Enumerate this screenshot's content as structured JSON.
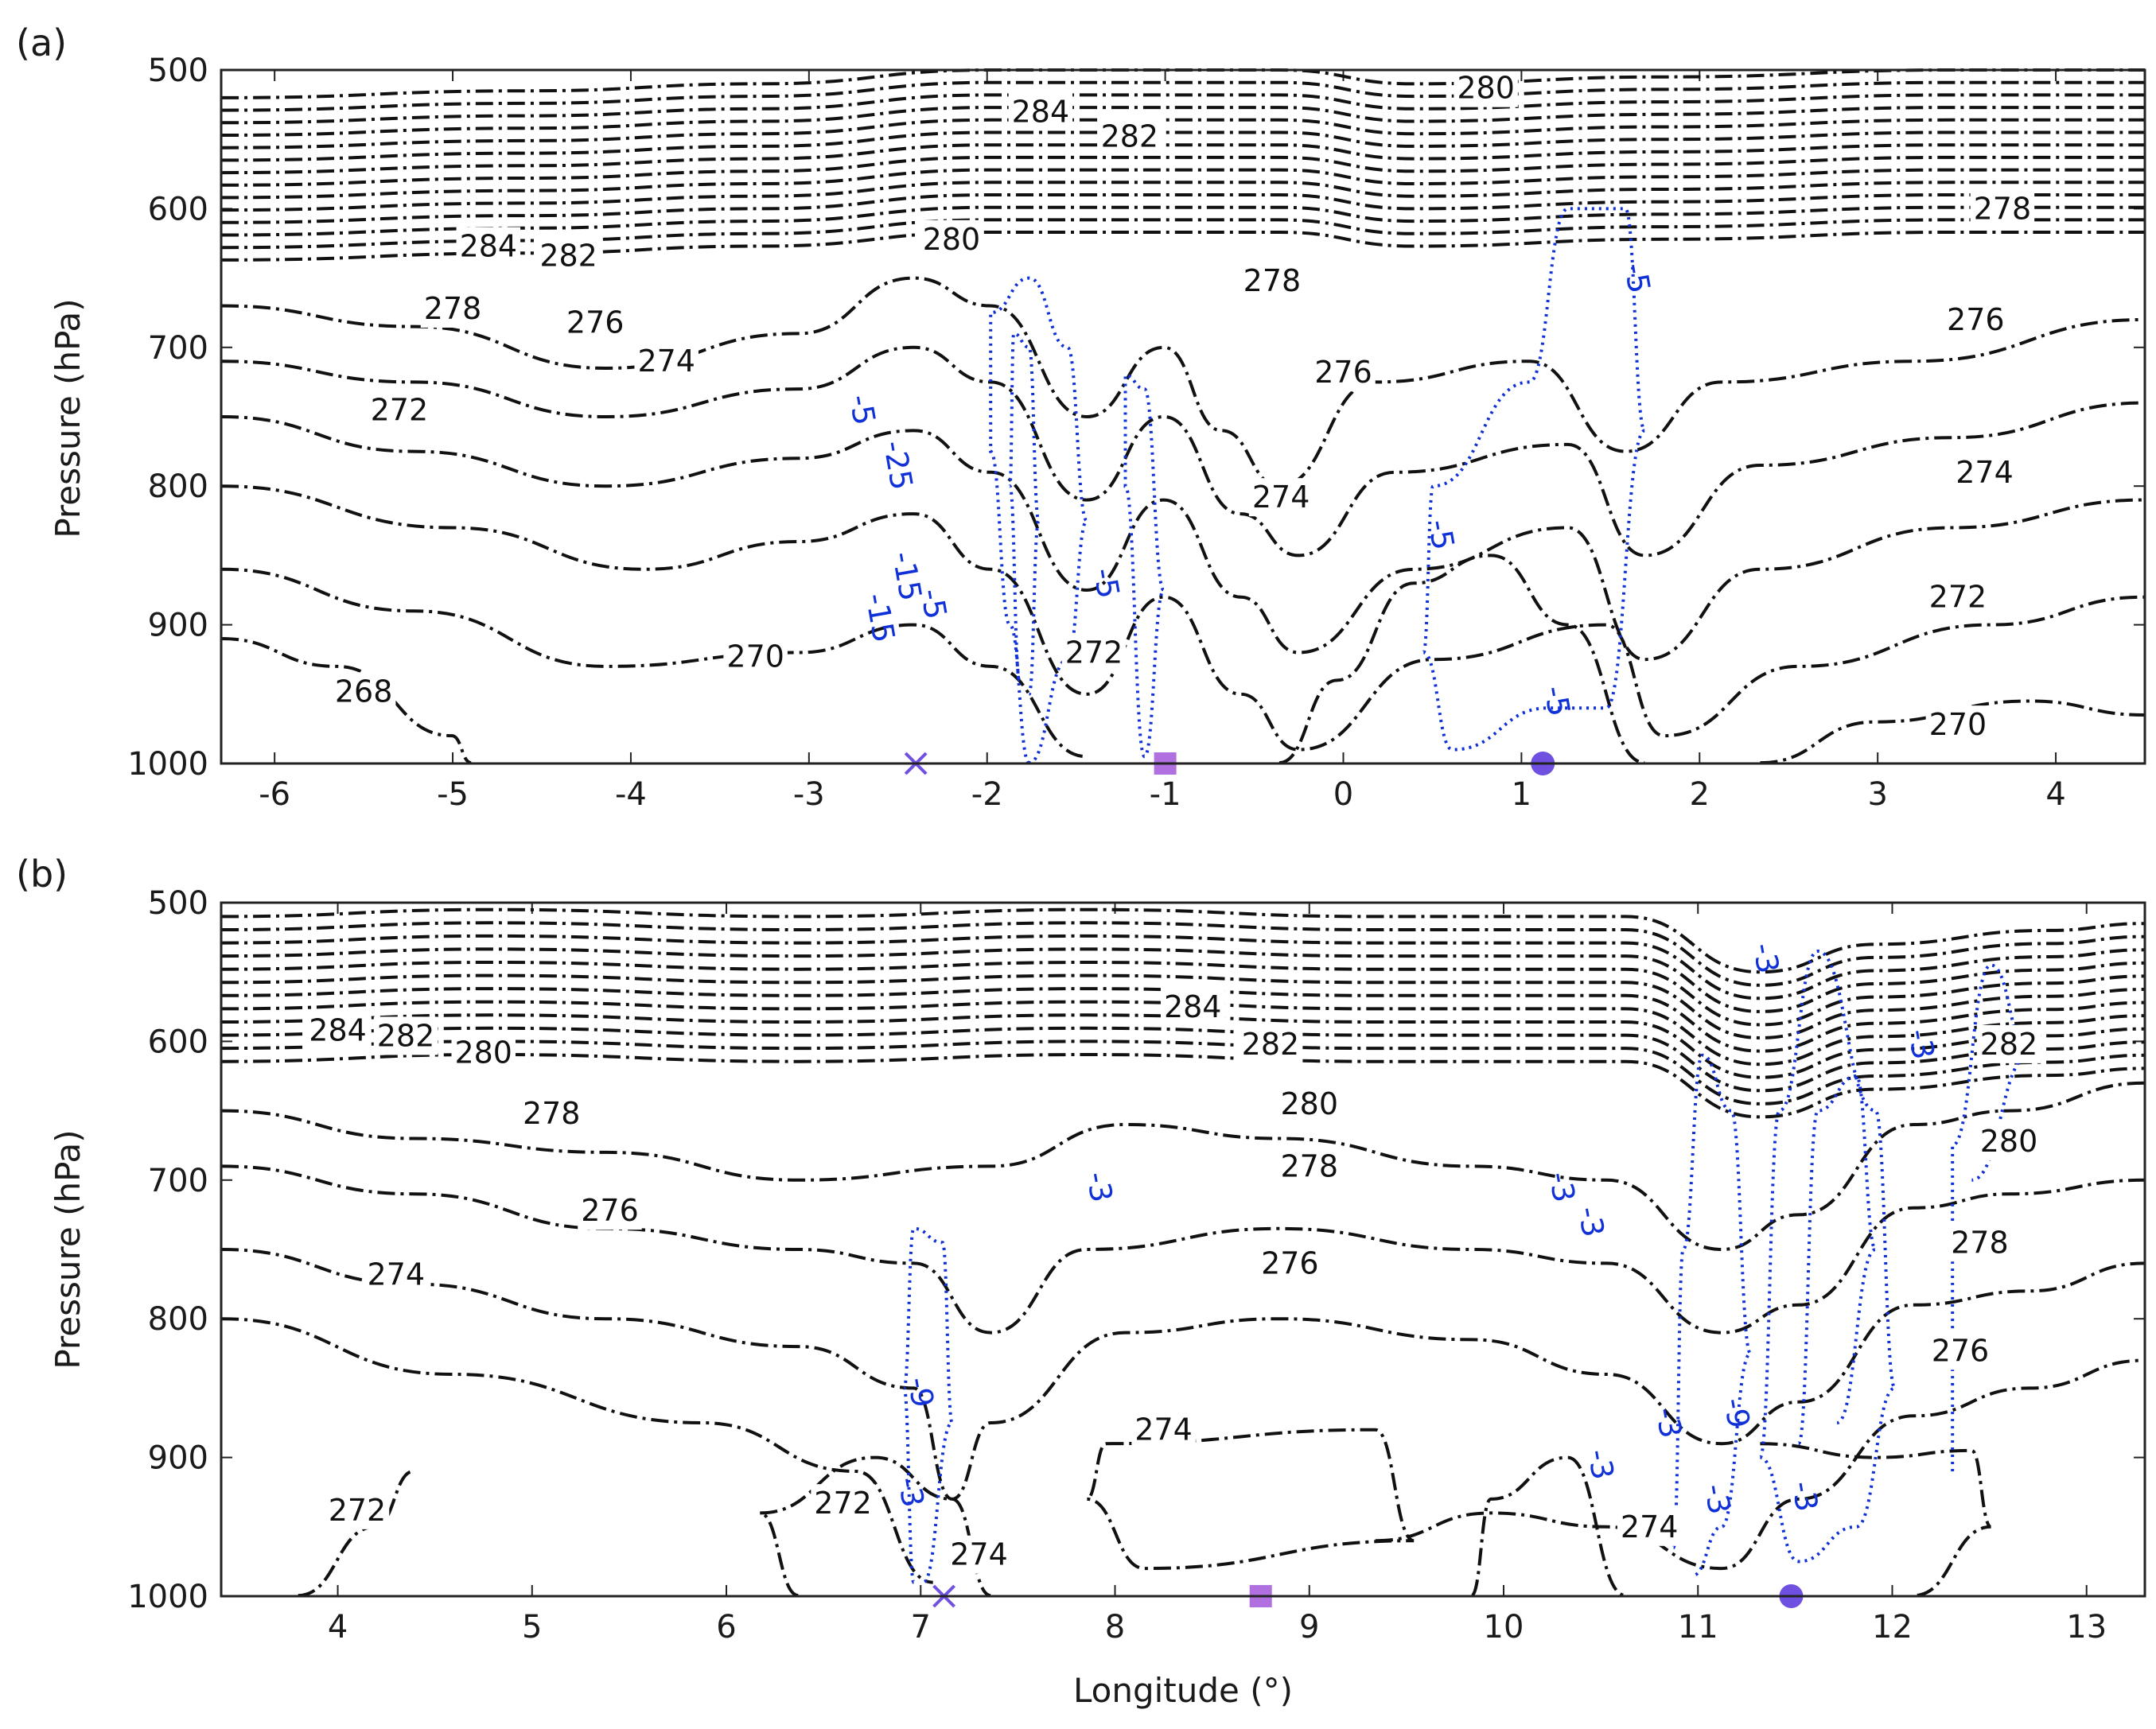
{
  "chart_data": [
    {
      "panel": "(a)",
      "type": "contour",
      "ylabel": "Pressure (hPa)",
      "xlabel": "",
      "xlim": [
        -6.3,
        4.5
      ],
      "ylim": [
        1000,
        500
      ],
      "y_reversed": true,
      "xticks": [
        -6,
        -5,
        -4,
        -3,
        -2,
        -1,
        0,
        1,
        2,
        3,
        4
      ],
      "yticks": [
        500,
        600,
        700,
        800,
        900,
        1000
      ],
      "styles": {
        "contour_color": "#111111",
        "overlay_color": "#1030d8",
        "marker_color": "#b070e0",
        "dot_color": "#7050e0"
      },
      "contour_labels": [
        {
          "text": "284",
          "x": -1.7,
          "y": 530
        },
        {
          "text": "282",
          "x": -1.2,
          "y": 548
        },
        {
          "text": "280",
          "x": 0.8,
          "y": 513
        },
        {
          "text": "278",
          "x": 3.7,
          "y": 600
        },
        {
          "text": "284",
          "x": -4.8,
          "y": 627
        },
        {
          "text": "282",
          "x": -4.35,
          "y": 634
        },
        {
          "text": "280",
          "x": -2.2,
          "y": 622
        },
        {
          "text": "278",
          "x": -5.0,
          "y": 672
        },
        {
          "text": "276",
          "x": -4.2,
          "y": 682
        },
        {
          "text": "274",
          "x": -3.8,
          "y": 710
        },
        {
          "text": "272",
          "x": -5.3,
          "y": 745
        },
        {
          "text": "278",
          "x": -0.4,
          "y": 652
        },
        {
          "text": "276",
          "x": 0.0,
          "y": 718
        },
        {
          "text": "276",
          "x": 3.55,
          "y": 680
        },
        {
          "text": "274",
          "x": 3.6,
          "y": 790
        },
        {
          "text": "274",
          "x": -0.35,
          "y": 808
        },
        {
          "text": "272",
          "x": 3.45,
          "y": 880
        },
        {
          "text": "270",
          "x": -3.3,
          "y": 923
        },
        {
          "text": "268",
          "x": -5.5,
          "y": 948
        },
        {
          "text": "270",
          "x": 3.45,
          "y": 972
        },
        {
          "text": "272",
          "x": -1.4,
          "y": 920
        }
      ],
      "overlay_labels": [
        {
          "text": "-5",
          "x": -2.7,
          "y": 745
        },
        {
          "text": "-25",
          "x": -2.5,
          "y": 785
        },
        {
          "text": "-5",
          "x": -2.3,
          "y": 885
        },
        {
          "text": "-15",
          "x": -2.45,
          "y": 865
        },
        {
          "text": "-15",
          "x": -2.6,
          "y": 895
        },
        {
          "text": "-5",
          "x": -1.33,
          "y": 870
        },
        {
          "text": "-5",
          "x": 0.55,
          "y": 835
        },
        {
          "text": "-5",
          "x": 1.65,
          "y": 650
        },
        {
          "text": "-5",
          "x": 1.2,
          "y": 955
        }
      ],
      "markers": [
        {
          "shape": "x",
          "x": -2.4,
          "y": 1000
        },
        {
          "shape": "square",
          "x": -1.0,
          "y": 1000
        },
        {
          "shape": "circle",
          "x": 1.12,
          "y": 1000
        }
      ]
    },
    {
      "panel": "(b)",
      "type": "contour",
      "ylabel": "Pressure (hPa)",
      "xlabel": "Longitude (°)",
      "xlim": [
        3.4,
        13.3
      ],
      "ylim": [
        1000,
        500
      ],
      "y_reversed": true,
      "xticks": [
        4,
        5,
        6,
        7,
        8,
        9,
        10,
        11,
        12,
        13
      ],
      "yticks": [
        500,
        600,
        700,
        800,
        900,
        1000
      ],
      "styles": {
        "contour_color": "#111111",
        "overlay_color": "#1030d8",
        "marker_color": "#b070e0",
        "dot_color": "#7050e0"
      },
      "contour_labels": [
        {
          "text": "284",
          "x": 4.0,
          "y": 592
        },
        {
          "text": "282",
          "x": 4.35,
          "y": 596
        },
        {
          "text": "280",
          "x": 4.75,
          "y": 608
        },
        {
          "text": "278",
          "x": 5.1,
          "y": 652
        },
        {
          "text": "276",
          "x": 5.4,
          "y": 722
        },
        {
          "text": "274",
          "x": 4.3,
          "y": 768
        },
        {
          "text": "284",
          "x": 8.4,
          "y": 575
        },
        {
          "text": "282",
          "x": 8.8,
          "y": 602
        },
        {
          "text": "280",
          "x": 9.0,
          "y": 645
        },
        {
          "text": "278",
          "x": 9.0,
          "y": 690
        },
        {
          "text": "276",
          "x": 8.9,
          "y": 760
        },
        {
          "text": "274",
          "x": 8.25,
          "y": 880
        },
        {
          "text": "282",
          "x": 12.6,
          "y": 602
        },
        {
          "text": "280",
          "x": 12.6,
          "y": 672
        },
        {
          "text": "278",
          "x": 12.45,
          "y": 745
        },
        {
          "text": "276",
          "x": 12.35,
          "y": 823
        },
        {
          "text": "272",
          "x": 4.1,
          "y": 938
        },
        {
          "text": "272",
          "x": 6.6,
          "y": 933
        },
        {
          "text": "274",
          "x": 7.3,
          "y": 970
        },
        {
          "text": "274",
          "x": 10.75,
          "y": 950
        }
      ],
      "overlay_labels": [
        {
          "text": "-3",
          "x": 11.35,
          "y": 540
        },
        {
          "text": "-3",
          "x": 12.15,
          "y": 602
        },
        {
          "text": "-3",
          "x": 7.92,
          "y": 705
        },
        {
          "text": "-3",
          "x": 10.3,
          "y": 705
        },
        {
          "text": "-3",
          "x": 10.45,
          "y": 730
        },
        {
          "text": "-9",
          "x": 7.0,
          "y": 853
        },
        {
          "text": "-3",
          "x": 10.85,
          "y": 875
        },
        {
          "text": "-9",
          "x": 11.2,
          "y": 868
        },
        {
          "text": "-3",
          "x": 10.5,
          "y": 905
        },
        {
          "text": "-3",
          "x": 6.95,
          "y": 925
        },
        {
          "text": "-3",
          "x": 11.1,
          "y": 930
        },
        {
          "text": "-3",
          "x": 11.55,
          "y": 928
        }
      ],
      "markers": [
        {
          "shape": "x",
          "x": 7.12,
          "y": 1000
        },
        {
          "shape": "square",
          "x": 8.75,
          "y": 1000
        },
        {
          "shape": "circle",
          "x": 11.48,
          "y": 1000
        }
      ]
    }
  ]
}
